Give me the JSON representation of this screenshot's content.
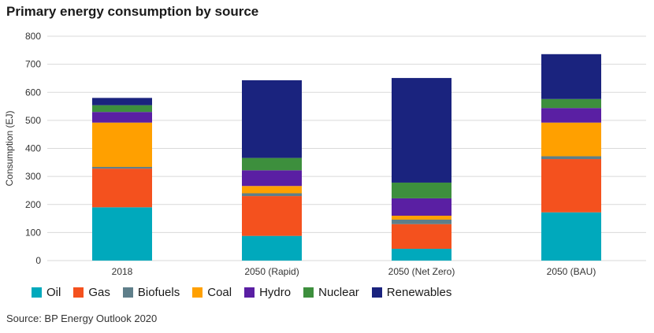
{
  "title": "Primary energy consumption by source",
  "source": "Source: BP Energy Outlook 2020",
  "chart_data": {
    "type": "bar",
    "stacked": true,
    "title": "Primary energy consumption by source",
    "xlabel": "",
    "ylabel": "Consumption (EJ)",
    "ylim": [
      0,
      800
    ],
    "yticks": [
      0,
      100,
      200,
      300,
      400,
      500,
      600,
      700,
      800
    ],
    "grid": true,
    "legend": "bottom",
    "categories": [
      "2018",
      "2050 (Rapid)",
      "2050 (Net Zero)",
      "2050 (BAU)"
    ],
    "series": [
      {
        "name": "Oil",
        "color": "#00a9bc",
        "values": [
          190,
          88,
          42,
          172
        ]
      },
      {
        "name": "Gas",
        "color": "#f4511e",
        "values": [
          138,
          142,
          88,
          190
        ]
      },
      {
        "name": "Biofuels",
        "color": "#5f7f8a",
        "values": [
          6,
          10,
          16,
          10
        ]
      },
      {
        "name": "Coal",
        "color": "#ffa000",
        "values": [
          158,
          26,
          14,
          120
        ]
      },
      {
        "name": "Hydro",
        "color": "#5a1fa3",
        "values": [
          38,
          56,
          62,
          52
        ]
      },
      {
        "name": "Nuclear",
        "color": "#3d8f3d",
        "values": [
          24,
          44,
          56,
          32
        ]
      },
      {
        "name": "Renewables",
        "color": "#1a237e",
        "values": [
          26,
          277,
          373,
          160
        ]
      }
    ]
  }
}
